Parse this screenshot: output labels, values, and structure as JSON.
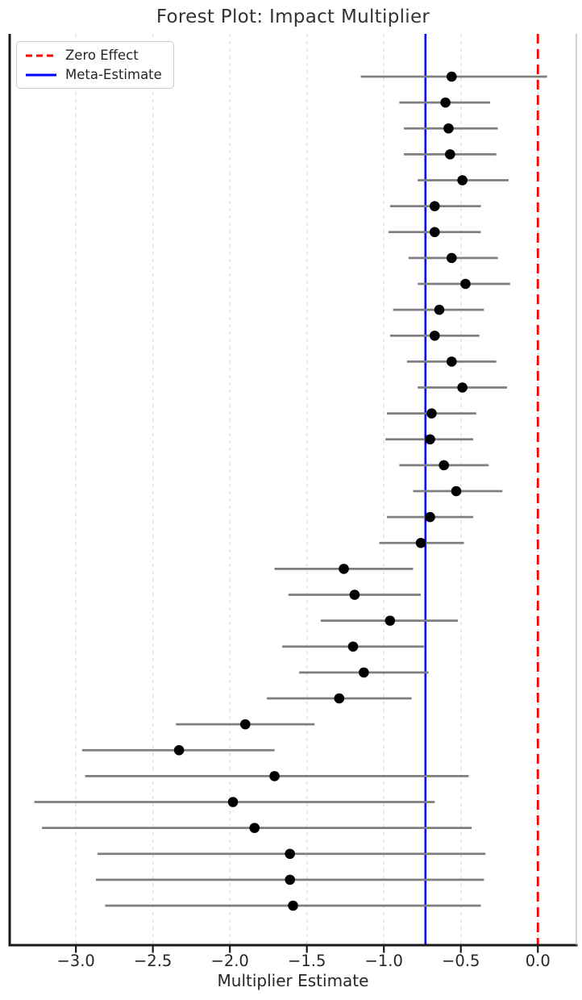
{
  "chart_data": {
    "type": "forest",
    "title": "Forest Plot: Impact Multiplier",
    "xlabel": "Multiplier Estimate",
    "xlim": [
      -3.43,
      0.25
    ],
    "grid": true,
    "x_ticks": [
      {
        "value": -3.0,
        "label": "−3.0"
      },
      {
        "value": -2.5,
        "label": "−2.5"
      },
      {
        "value": -2.0,
        "label": "−2.0"
      },
      {
        "value": -1.5,
        "label": "−1.5"
      },
      {
        "value": -1.0,
        "label": "−1.0"
      },
      {
        "value": -0.5,
        "label": "−0.5"
      },
      {
        "value": 0.0,
        "label": "0.0"
      }
    ],
    "legend": {
      "position": "upper-left",
      "items": [
        {
          "label": "Zero Effect",
          "color": "#ff0000",
          "dash": true
        },
        {
          "label": "Meta-Estimate",
          "color": "#0000ff",
          "dash": false
        }
      ]
    },
    "reference_lines": {
      "zero_effect": 0.0,
      "meta_estimate": -0.73
    },
    "style": {
      "marker_color": "#000000",
      "ci_color": "#7f7f7f",
      "grid_color": "#d9d9d9",
      "spine_color": "#1a1a1a",
      "right_spine_color": "#b3b3b3",
      "zero_line_color": "#ff0000",
      "meta_line_color": "#0000ff"
    },
    "studies": [
      {
        "est": -0.56,
        "lo": -1.15,
        "hi": 0.06
      },
      {
        "est": -0.6,
        "lo": -0.9,
        "hi": -0.31
      },
      {
        "est": -0.58,
        "lo": -0.87,
        "hi": -0.26
      },
      {
        "est": -0.57,
        "lo": -0.87,
        "hi": -0.27
      },
      {
        "est": -0.49,
        "lo": -0.78,
        "hi": -0.19
      },
      {
        "est": -0.67,
        "lo": -0.96,
        "hi": -0.37
      },
      {
        "est": -0.67,
        "lo": -0.97,
        "hi": -0.37
      },
      {
        "est": -0.56,
        "lo": -0.84,
        "hi": -0.26
      },
      {
        "est": -0.47,
        "lo": -0.78,
        "hi": -0.18
      },
      {
        "est": -0.64,
        "lo": -0.94,
        "hi": -0.35
      },
      {
        "est": -0.67,
        "lo": -0.96,
        "hi": -0.38
      },
      {
        "est": -0.56,
        "lo": -0.85,
        "hi": -0.27
      },
      {
        "est": -0.49,
        "lo": -0.78,
        "hi": -0.2
      },
      {
        "est": -0.69,
        "lo": -0.98,
        "hi": -0.4
      },
      {
        "est": -0.7,
        "lo": -0.99,
        "hi": -0.42
      },
      {
        "est": -0.61,
        "lo": -0.9,
        "hi": -0.32
      },
      {
        "est": -0.53,
        "lo": -0.81,
        "hi": -0.23
      },
      {
        "est": -0.7,
        "lo": -0.98,
        "hi": -0.42
      },
      {
        "est": -0.76,
        "lo": -1.03,
        "hi": -0.48
      },
      {
        "est": -1.26,
        "lo": -1.71,
        "hi": -0.81
      },
      {
        "est": -1.19,
        "lo": -1.62,
        "hi": -0.76
      },
      {
        "est": -0.96,
        "lo": -1.41,
        "hi": -0.52
      },
      {
        "est": -1.2,
        "lo": -1.66,
        "hi": -0.74
      },
      {
        "est": -1.13,
        "lo": -1.55,
        "hi": -0.71
      },
      {
        "est": -1.29,
        "lo": -1.76,
        "hi": -0.82
      },
      {
        "est": -1.9,
        "lo": -2.35,
        "hi": -1.45
      },
      {
        "est": -2.33,
        "lo": -2.96,
        "hi": -1.71
      },
      {
        "est": -1.71,
        "lo": -2.94,
        "hi": -0.45
      },
      {
        "est": -1.98,
        "lo": -3.27,
        "hi": -0.67
      },
      {
        "est": -1.84,
        "lo": -3.22,
        "hi": -0.43
      },
      {
        "est": -1.61,
        "lo": -2.86,
        "hi": -0.34
      },
      {
        "est": -1.61,
        "lo": -2.87,
        "hi": -0.35
      },
      {
        "est": -1.59,
        "lo": -2.81,
        "hi": -0.37
      }
    ]
  }
}
